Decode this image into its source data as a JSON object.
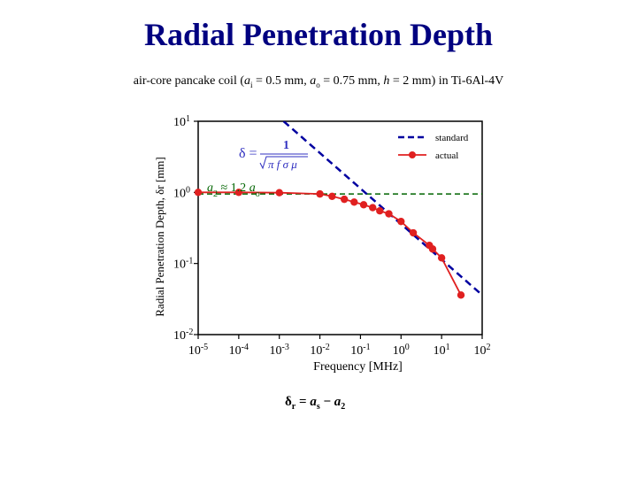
{
  "title": "Radial Penetration Depth",
  "subtitle": {
    "prefix": "air-core pancake coil (",
    "a1_sym": "a",
    "a1_sub": "i",
    "a1_val": " = 0.5 mm, ",
    "ao_sym": "a",
    "ao_sub": "o",
    "ao_val": " = 0.75 mm, ",
    "h_sym": "h",
    "h_val": " = 2 mm)  in Ti-6Al-4V"
  },
  "bottom_equation": {
    "lhs": "δ",
    "lhs_sub": "r",
    "eq": " = ",
    "t1": "a",
    "t1_sub": "s",
    "minus": " − ",
    "t2": "a",
    "t2_sub": "2"
  },
  "chart_data": {
    "type": "line",
    "xscale": "log",
    "yscale": "log",
    "xlabel": "Frequency [MHz]",
    "ylabel": "Radial Penetration Depth, δr [mm]",
    "xlim": [
      1e-05,
      100
    ],
    "ylim": [
      0.01,
      10
    ],
    "x_ticks": [
      {
        "base": "10",
        "exp": "-5",
        "value": 1e-05
      },
      {
        "base": "10",
        "exp": "-4",
        "value": 0.0001
      },
      {
        "base": "10",
        "exp": "-3",
        "value": 0.001
      },
      {
        "base": "10",
        "exp": "-2",
        "value": 0.01
      },
      {
        "base": "10",
        "exp": "-1",
        "value": 0.1
      },
      {
        "base": "10",
        "exp": "0",
        "value": 1
      },
      {
        "base": "10",
        "exp": "1",
        "value": 10
      },
      {
        "base": "10",
        "exp": "2",
        "value": 100
      }
    ],
    "y_ticks": [
      {
        "base": "10",
        "exp": "1",
        "value": 10
      },
      {
        "base": "10",
        "exp": "0",
        "value": 1
      },
      {
        "base": "10",
        "exp": "-1",
        "value": 0.1
      },
      {
        "base": "10",
        "exp": "-2",
        "value": 0.01
      }
    ],
    "series": [
      {
        "name": "standard",
        "style": "dashed",
        "color": "#0000a0",
        "x": [
          0.00128,
          100
        ],
        "y": [
          10,
          0.036
        ]
      },
      {
        "name": "actual",
        "style": "solid-markers",
        "color": "#e02020",
        "x": [
          1e-05,
          0.0001,
          0.001,
          0.01,
          0.02,
          0.04,
          0.07,
          0.12,
          0.2,
          0.3,
          0.5,
          1,
          2,
          5,
          6,
          10,
          30
        ],
        "y": [
          1.0,
          1.0,
          0.99,
          0.95,
          0.88,
          0.8,
          0.73,
          0.67,
          0.61,
          0.55,
          0.5,
          0.39,
          0.27,
          0.18,
          0.16,
          0.12,
          0.036
        ]
      }
    ],
    "reference_line": {
      "name": "a2 ≈ 1.2 ao",
      "value": 0.95,
      "color": "#006400",
      "style": "dashed"
    },
    "legend": {
      "position": "top-right",
      "entries": [
        "standard",
        "actual"
      ]
    },
    "formula_annotation": {
      "lhs": "δ",
      "num": "1",
      "den": "π f σ μ"
    },
    "a2_annotation": {
      "a2": "a",
      "a2_sub": "2",
      "approx": "≈ 1.2",
      "ao": "a",
      "ao_sub": "o"
    }
  }
}
